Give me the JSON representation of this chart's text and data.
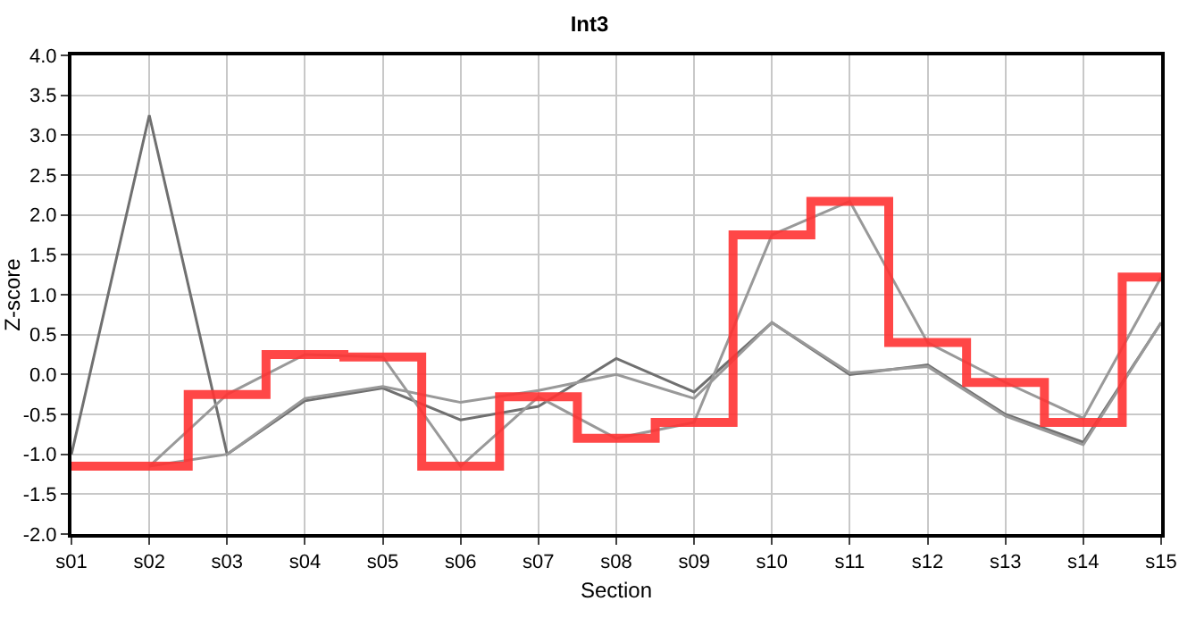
{
  "chart_data": {
    "type": "line",
    "title": "Int3",
    "xlabel": "Section",
    "ylabel": "Z-score",
    "categories": [
      "s01",
      "s02",
      "s03",
      "s04",
      "s05",
      "s06",
      "s07",
      "s08",
      "s09",
      "s10",
      "s11",
      "s12",
      "s13",
      "s14",
      "s15"
    ],
    "series": [
      {
        "color": "#707070",
        "values": [
          -1.0,
          3.25,
          -1.0,
          -0.33,
          -0.17,
          -0.57,
          -0.4,
          0.2,
          -0.22,
          0.65,
          0.0,
          0.12,
          -0.5,
          -0.85,
          0.65
        ]
      },
      {
        "color": "#999999",
        "values": [
          null,
          -1.15,
          -1.0,
          -0.3,
          -0.15,
          -0.35,
          -0.2,
          0.0,
          -0.3,
          0.65,
          0.02,
          0.1,
          -0.52,
          -0.88,
          0.65
        ]
      },
      {
        "color": "#999999",
        "values": [
          null,
          -1.15,
          -0.25,
          0.25,
          0.22,
          -1.15,
          -0.28,
          -0.8,
          -0.6,
          1.75,
          2.17,
          0.4,
          -0.1,
          -0.55,
          1.22
        ]
      },
      {
        "type": "step",
        "color": "#ff3333",
        "values": [
          -1.15,
          -1.15,
          -0.25,
          0.25,
          0.22,
          -1.15,
          -0.28,
          -0.8,
          -0.6,
          1.75,
          2.17,
          0.4,
          -0.1,
          -0.6,
          1.22
        ]
      }
    ],
    "ylim": [
      -2,
      4
    ],
    "yticks": [
      {
        "value": -2,
        "label": "-2.0"
      },
      {
        "value": -1.5,
        "label": "-1.5"
      },
      {
        "value": -1,
        "label": "-1.0"
      },
      {
        "value": -0.5,
        "label": "-0.5"
      },
      {
        "value": 0,
        "label": "0.0"
      },
      {
        "value": 0.5,
        "label": "0.5"
      },
      {
        "value": 1,
        "label": "1.0"
      },
      {
        "value": 1.5,
        "label": "1.5"
      },
      {
        "value": 2,
        "label": "2.0"
      },
      {
        "value": 2.5,
        "label": "2.5"
      },
      {
        "value": 3,
        "label": "3.0"
      },
      {
        "value": 3.5,
        "label": "3.5"
      },
      {
        "value": 4,
        "label": "4.0"
      }
    ],
    "grid": true,
    "marker": "none",
    "line_style": "solid"
  }
}
